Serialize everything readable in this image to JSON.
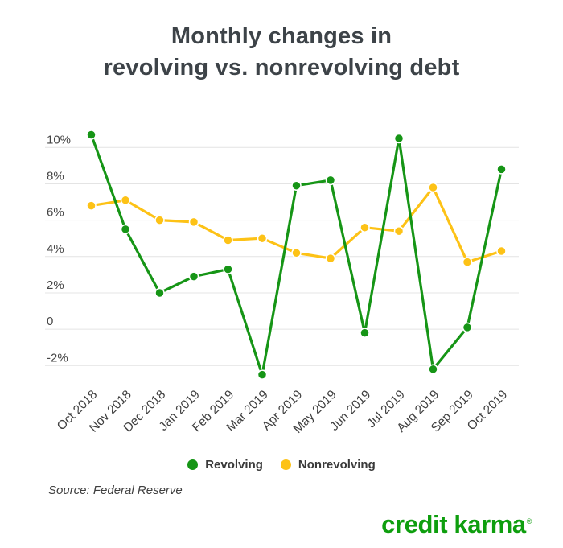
{
  "page": {
    "background": "#ffffff"
  },
  "header": {
    "title_line1": "Monthly changes in",
    "title_line2": "revolving vs. nonrevolving debt",
    "title_color": "#3d4348"
  },
  "chart_data": {
    "type": "line",
    "title": "Monthly changes in revolving vs. nonrevolving debt",
    "categories": [
      "Oct 2018",
      "Nov 2018",
      "Dec 2018",
      "Jan 2019",
      "Feb 2019",
      "Mar 2019",
      "Apr 2019",
      "May 2019",
      "Jun 2019",
      "Jul 2019",
      "Aug 2019",
      "Sep 2019",
      "Oct 2019"
    ],
    "series": [
      {
        "name": "Revolving",
        "color": "#169516",
        "values": [
          10.7,
          5.5,
          2.0,
          2.9,
          3.3,
          -2.5,
          7.9,
          8.2,
          -0.2,
          10.5,
          -2.2,
          0.1,
          8.8
        ]
      },
      {
        "name": "Nonrevolving",
        "color": "#fdc216",
        "values": [
          6.8,
          7.1,
          6.0,
          5.9,
          4.9,
          5.0,
          4.2,
          3.9,
          5.6,
          5.4,
          7.8,
          3.7,
          4.3
        ]
      }
    ],
    "y_ticks": [
      {
        "value": 10,
        "label": "10%"
      },
      {
        "value": 8,
        "label": "8%"
      },
      {
        "value": 6,
        "label": "6%"
      },
      {
        "value": 4,
        "label": "4%"
      },
      {
        "value": 2,
        "label": "2%"
      },
      {
        "value": 0,
        "label": "0"
      },
      {
        "value": -2,
        "label": "-2%"
      }
    ],
    "ylim": [
      -3.2,
      11.3
    ],
    "unit": "%",
    "grid": "horizontal",
    "grid_color": "#e4e4e4",
    "axis_text_color": "#454545",
    "x_label_color": "#3f3f3f",
    "x_label_rotation": -45,
    "legend_position": "bottom",
    "point_style": "filled-circle-white-border"
  },
  "footer": {
    "source": "Source: Federal Reserve",
    "logo_text": "credit karma",
    "logo_mark": "®",
    "logo_color": "#0e9e0e"
  }
}
